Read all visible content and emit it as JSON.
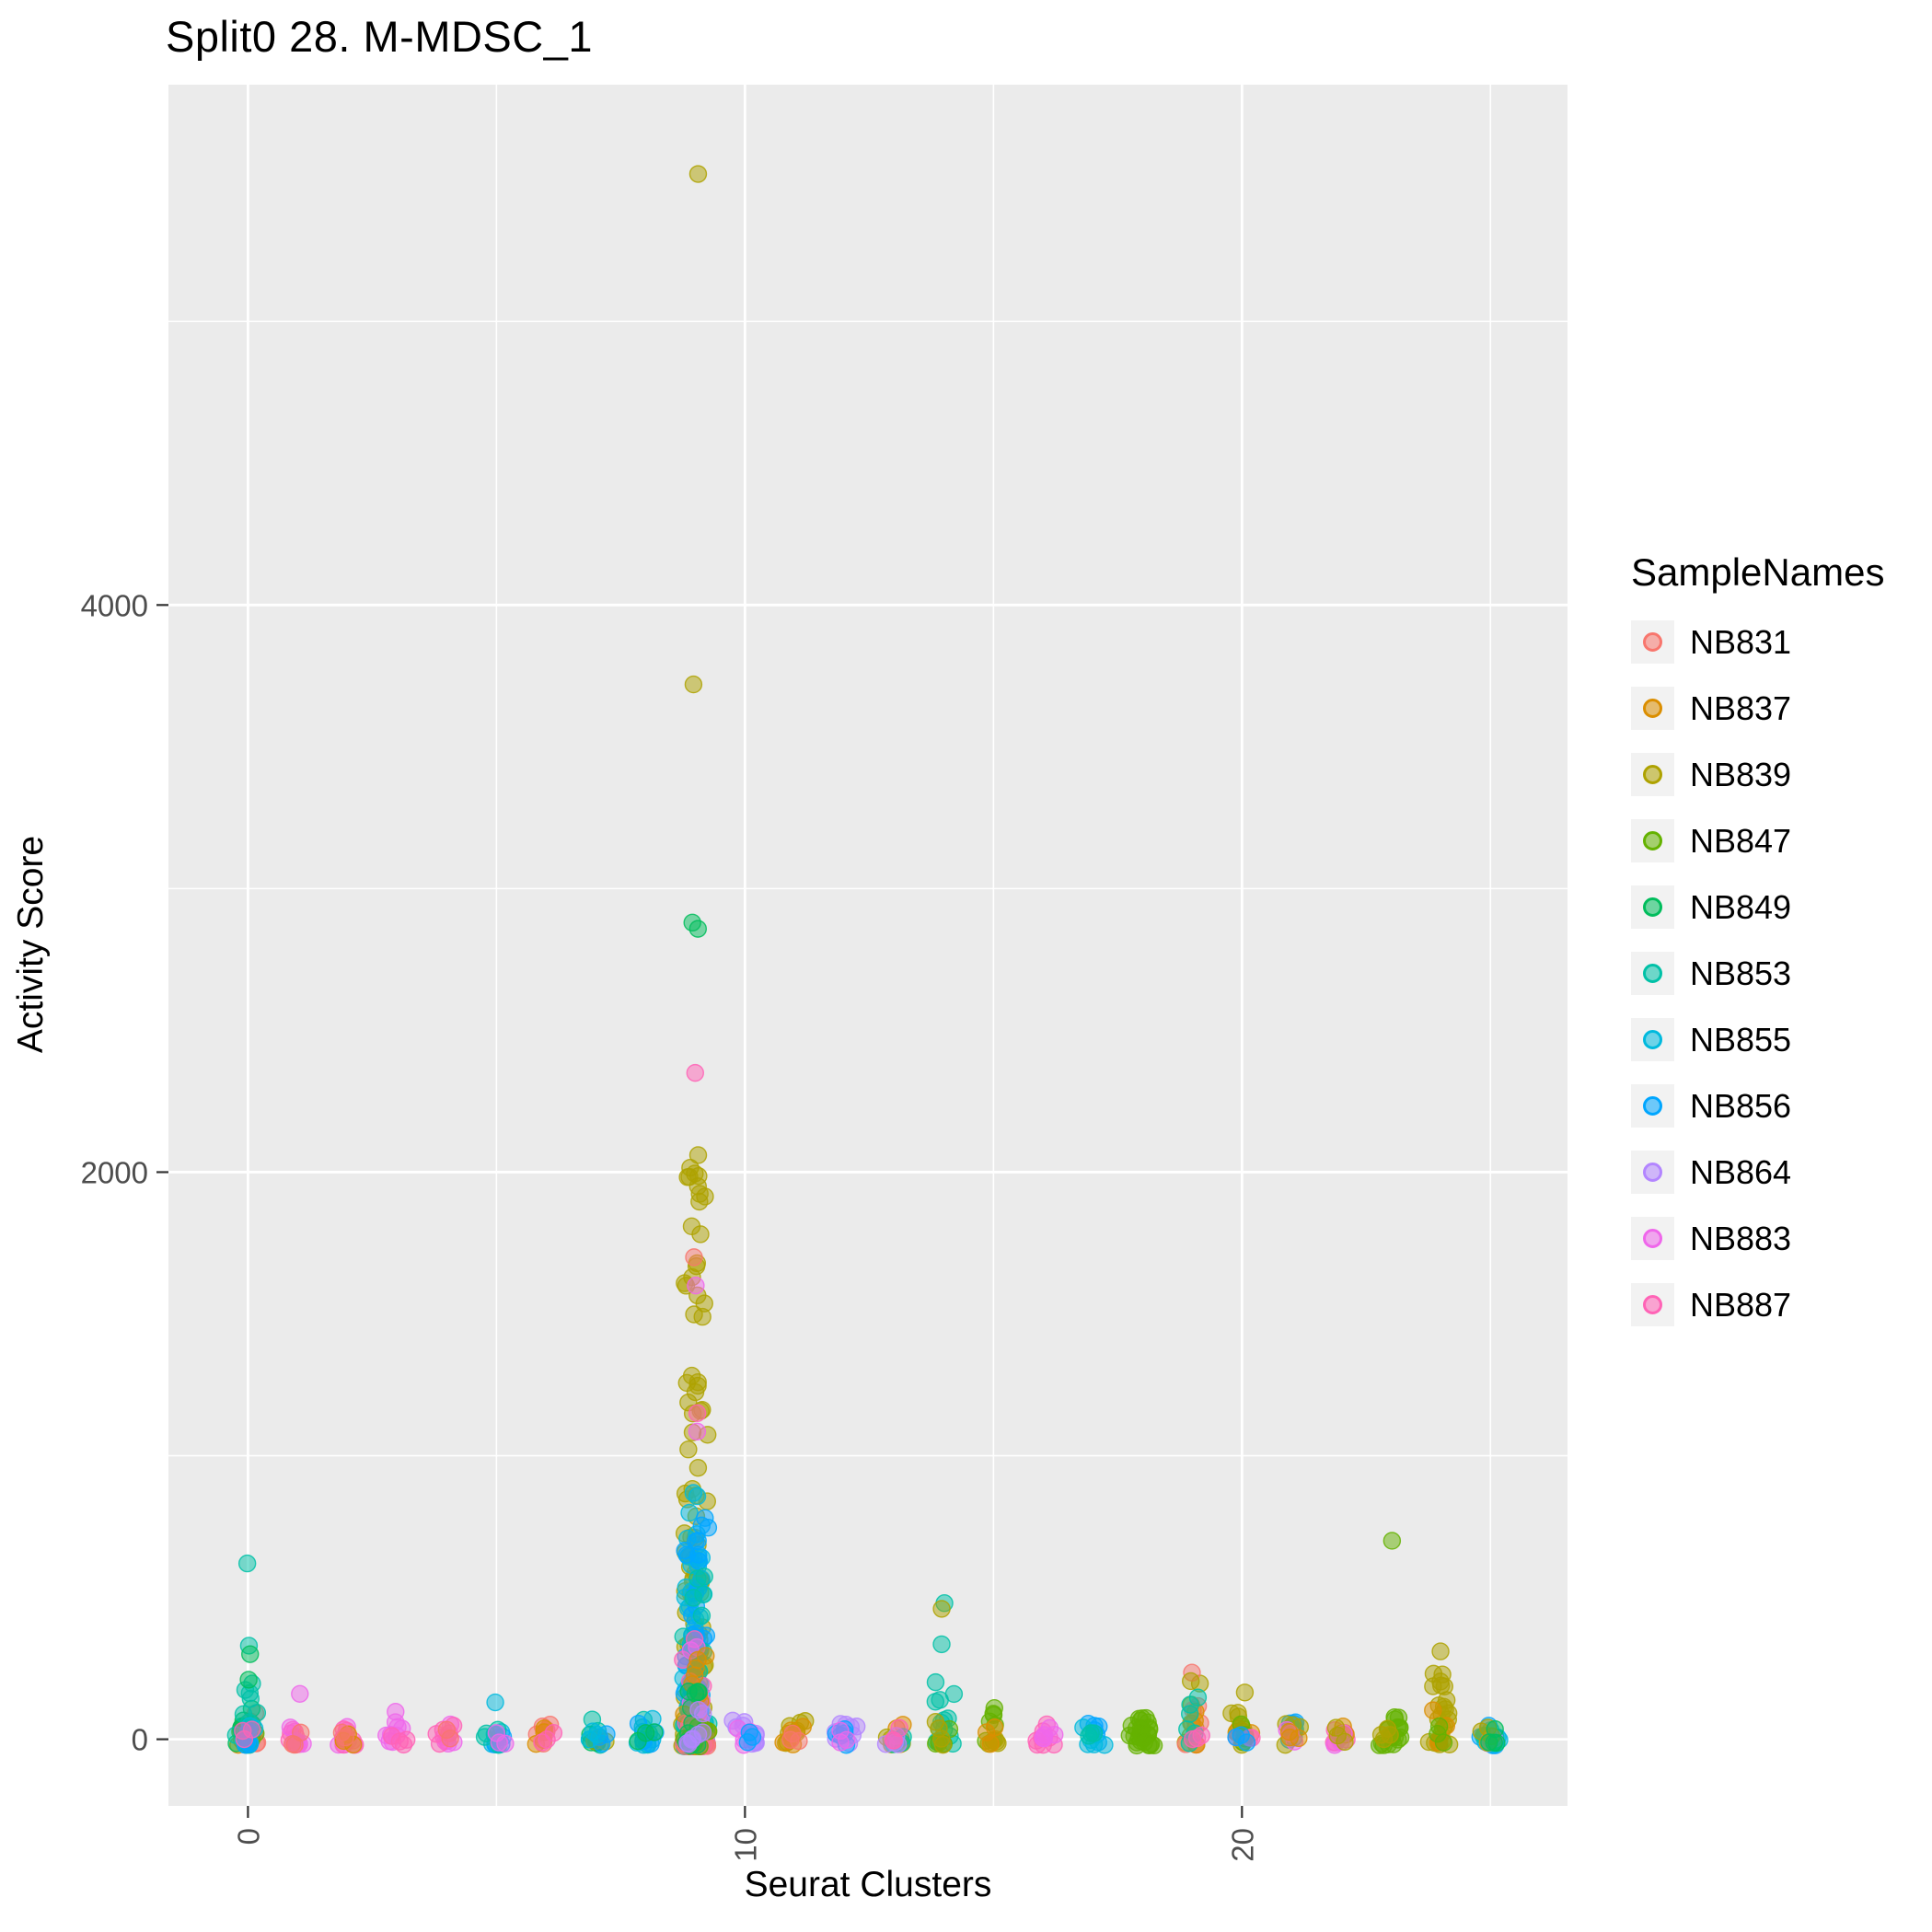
{
  "chart_data": {
    "type": "scatter",
    "title": "Split0 28. M-MDSC_1",
    "xlabel": "Seurat Clusters",
    "ylabel": "Activity Score",
    "x_domain": [
      -1.6,
      26.55
    ],
    "y_domain": [
      -235,
      5835
    ],
    "x_ticks": [
      {
        "v": 0,
        "label": "0"
      },
      {
        "v": 10,
        "label": "10"
      },
      {
        "v": 20,
        "label": "20"
      }
    ],
    "y_ticks": [
      {
        "v": 0,
        "label": "0"
      },
      {
        "v": 2000,
        "label": "2000"
      },
      {
        "v": 4000,
        "label": "4000"
      }
    ],
    "grid": {
      "major_y": [
        0,
        2000,
        4000
      ],
      "minor_y": [
        1000,
        3000,
        5000
      ],
      "major_x": [
        0,
        10,
        20
      ],
      "minor_x": [
        5,
        15,
        25
      ]
    },
    "style": {
      "panel_bg": "#EBEBEB",
      "grid_color": "#FFFFFF",
      "tick_color": "#333333",
      "tick_label_color": "#4D4D4D",
      "point_radius": 9,
      "point_fill_opacity": 0.5,
      "point_stroke_opacity": 0.85
    },
    "legend": {
      "title": "SampleNames",
      "entries": [
        {
          "label": "NB831",
          "color": "#F8766D"
        },
        {
          "label": "NB837",
          "color": "#DB8E00"
        },
        {
          "label": "NB839",
          "color": "#AEA200"
        },
        {
          "label": "NB847",
          "color": "#64B200"
        },
        {
          "label": "NB849",
          "color": "#00BD5C"
        },
        {
          "label": "NB853",
          "color": "#00C1A7"
        },
        {
          "label": "NB855",
          "color": "#00BADE"
        },
        {
          "label": "NB856",
          "color": "#00A6FF"
        },
        {
          "label": "NB864",
          "color": "#B385FF"
        },
        {
          "label": "NB883",
          "color": "#EF67EB"
        },
        {
          "label": "NB887",
          "color": "#FF63B6"
        }
      ]
    },
    "clouds": [
      [
        0,
        0,
        7,
        -20,
        130,
        1.6,
        0.27
      ],
      [
        0,
        1,
        5,
        -20,
        80,
        1.6,
        0.27
      ],
      [
        0,
        3,
        4,
        -20,
        60,
        1.6,
        0.27
      ],
      [
        0,
        4,
        8,
        -20,
        180,
        1.8,
        0.27
      ],
      [
        0,
        5,
        10,
        -20,
        200,
        2.0,
        0.27
      ],
      [
        0,
        6,
        4,
        -20,
        50,
        1.6,
        0.27
      ],
      [
        0,
        7,
        4,
        -20,
        50,
        1.6,
        0.27
      ],
      [
        0,
        10,
        3,
        -20,
        40,
        1.6,
        0.27
      ],
      [
        1,
        10,
        8,
        -20,
        60,
        1.6,
        0.27
      ],
      [
        1,
        9,
        5,
        -20,
        60,
        1.6,
        0.27
      ],
      [
        1,
        0,
        3,
        -20,
        40,
        1.6,
        0.27
      ],
      [
        2,
        9,
        6,
        -20,
        50,
        1.6,
        0.27
      ],
      [
        2,
        10,
        6,
        -20,
        40,
        1.6,
        0.27
      ],
      [
        2,
        1,
        3,
        -20,
        30,
        1.6,
        0.27
      ],
      [
        2,
        0,
        2,
        -20,
        30,
        1.6,
        0.2
      ],
      [
        3,
        9,
        9,
        -20,
        100,
        1.8,
        0.27
      ],
      [
        3,
        10,
        4,
        -20,
        50,
        1.6,
        0.27
      ],
      [
        4,
        9,
        7,
        -20,
        70,
        1.6,
        0.27
      ],
      [
        4,
        10,
        5,
        -20,
        50,
        1.6,
        0.27
      ],
      [
        4,
        0,
        2,
        -20,
        40,
        1.6,
        0.2
      ],
      [
        5,
        6,
        5,
        -20,
        60,
        1.6,
        0.27
      ],
      [
        5,
        7,
        4,
        -20,
        50,
        1.6,
        0.27
      ],
      [
        5,
        5,
        4,
        -20,
        40,
        1.6,
        0.27
      ],
      [
        5,
        9,
        3,
        -20,
        40,
        1.6,
        0.27
      ],
      [
        6,
        0,
        6,
        -20,
        60,
        1.6,
        0.27
      ],
      [
        6,
        1,
        4,
        -20,
        50,
        1.6,
        0.27
      ],
      [
        6,
        10,
        3,
        -20,
        50,
        1.6,
        0.27
      ],
      [
        7,
        5,
        6,
        -20,
        90,
        1.7,
        0.27
      ],
      [
        7,
        4,
        4,
        -20,
        60,
        1.6,
        0.27
      ],
      [
        7,
        2,
        3,
        -20,
        40,
        1.6,
        0.27
      ],
      [
        7,
        7,
        3,
        -20,
        40,
        1.6,
        0.27
      ],
      [
        7,
        6,
        3,
        -20,
        40,
        1.6,
        0.27
      ],
      [
        8,
        5,
        6,
        -20,
        100,
        1.8,
        0.27
      ],
      [
        8,
        6,
        5,
        -20,
        90,
        1.7,
        0.27
      ],
      [
        8,
        7,
        4,
        -20,
        60,
        1.6,
        0.27
      ],
      [
        8,
        4,
        3,
        -20,
        50,
        1.6,
        0.27
      ],
      [
        9,
        2,
        110,
        -25,
        1150,
        2.4,
        0.3
      ],
      [
        9,
        2,
        26,
        1150,
        2060,
        1.2,
        0.24
      ],
      [
        9,
        6,
        55,
        -25,
        950,
        2.4,
        0.3
      ],
      [
        9,
        7,
        45,
        -25,
        820,
        2.3,
        0.3
      ],
      [
        9,
        5,
        30,
        -25,
        620,
        2.2,
        0.3
      ],
      [
        9,
        10,
        26,
        -25,
        380,
        2.0,
        0.3
      ],
      [
        9,
        9,
        20,
        -25,
        330,
        2.0,
        0.3
      ],
      [
        9,
        1,
        15,
        -25,
        300,
        2.0,
        0.3
      ],
      [
        9,
        0,
        10,
        -25,
        220,
        1.8,
        0.3
      ],
      [
        9,
        3,
        10,
        -25,
        160,
        1.8,
        0.3
      ],
      [
        9,
        4,
        10,
        -25,
        260,
        1.8,
        0.3
      ],
      [
        9,
        8,
        8,
        -25,
        120,
        1.8,
        0.3
      ],
      [
        10,
        8,
        10,
        -20,
        70,
        1.6,
        0.3
      ],
      [
        10,
        9,
        4,
        -20,
        40,
        1.6,
        0.27
      ],
      [
        10,
        7,
        3,
        -20,
        40,
        1.6,
        0.2
      ],
      [
        11,
        2,
        8,
        -20,
        70,
        1.6,
        0.27
      ],
      [
        11,
        1,
        5,
        -20,
        60,
        1.6,
        0.27
      ],
      [
        11,
        0,
        3,
        -20,
        40,
        1.6,
        0.2
      ],
      [
        12,
        8,
        8,
        -20,
        55,
        1.6,
        0.27
      ],
      [
        12,
        7,
        5,
        -20,
        45,
        1.6,
        0.27
      ],
      [
        12,
        9,
        3,
        -20,
        40,
        1.6,
        0.2
      ],
      [
        13,
        1,
        4,
        -20,
        55,
        1.6,
        0.27
      ],
      [
        13,
        2,
        4,
        -20,
        50,
        1.6,
        0.27
      ],
      [
        13,
        5,
        4,
        -20,
        50,
        1.6,
        0.27
      ],
      [
        13,
        8,
        4,
        -20,
        45,
        1.6,
        0.27
      ],
      [
        13,
        10,
        3,
        -20,
        40,
        1.6,
        0.27
      ],
      [
        14,
        5,
        14,
        -20,
        310,
        1.9,
        0.27
      ],
      [
        14,
        3,
        4,
        -20,
        70,
        1.6,
        0.27
      ],
      [
        14,
        2,
        4,
        -20,
        90,
        1.6,
        0.27
      ],
      [
        15,
        3,
        6,
        -20,
        100,
        1.7,
        0.27
      ],
      [
        15,
        2,
        5,
        -20,
        90,
        1.7,
        0.27
      ],
      [
        15,
        1,
        3,
        -20,
        50,
        1.6,
        0.2
      ],
      [
        16,
        10,
        8,
        -20,
        55,
        1.6,
        0.27
      ],
      [
        16,
        9,
        5,
        -20,
        45,
        1.6,
        0.27
      ],
      [
        17,
        7,
        6,
        -20,
        55,
        1.6,
        0.27
      ],
      [
        17,
        6,
        5,
        -20,
        45,
        1.6,
        0.27
      ],
      [
        17,
        5,
        3,
        -20,
        40,
        1.6,
        0.2
      ],
      [
        18,
        3,
        26,
        -22,
        75,
        1.5,
        0.38
      ],
      [
        19,
        2,
        7,
        -20,
        210,
        1.8,
        0.27
      ],
      [
        19,
        0,
        5,
        -20,
        160,
        1.7,
        0.27
      ],
      [
        19,
        1,
        4,
        -20,
        120,
        1.7,
        0.27
      ],
      [
        19,
        5,
        6,
        -20,
        150,
        1.8,
        0.27
      ],
      [
        19,
        10,
        3,
        -20,
        50,
        1.6,
        0.27
      ],
      [
        20,
        2,
        8,
        -20,
        160,
        1.8,
        0.27
      ],
      [
        20,
        1,
        4,
        -20,
        90,
        1.7,
        0.27
      ],
      [
        20,
        3,
        4,
        -20,
        60,
        1.6,
        0.27
      ],
      [
        20,
        10,
        3,
        -20,
        50,
        1.6,
        0.27
      ],
      [
        20,
        7,
        3,
        -20,
        40,
        1.6,
        0.27
      ],
      [
        21,
        7,
        5,
        -20,
        60,
        1.6,
        0.27
      ],
      [
        21,
        6,
        4,
        -20,
        55,
        1.6,
        0.27
      ],
      [
        21,
        2,
        4,
        -20,
        65,
        1.6,
        0.27
      ],
      [
        21,
        9,
        3,
        -20,
        45,
        1.6,
        0.27
      ],
      [
        21,
        1,
        3,
        -20,
        45,
        1.6,
        0.27
      ],
      [
        22,
        10,
        6,
        -20,
        60,
        1.6,
        0.27
      ],
      [
        22,
        1,
        4,
        -20,
        55,
        1.6,
        0.27
      ],
      [
        22,
        9,
        3,
        -20,
        45,
        1.6,
        0.27
      ],
      [
        22,
        2,
        3,
        -20,
        45,
        1.6,
        0.27
      ],
      [
        23,
        3,
        18,
        -22,
        90,
        1.6,
        0.3
      ],
      [
        23,
        2,
        4,
        -20,
        60,
        1.6,
        0.27
      ],
      [
        24,
        2,
        22,
        -22,
        290,
        1.7,
        0.27
      ],
      [
        24,
        1,
        5,
        -20,
        120,
        1.7,
        0.27
      ],
      [
        24,
        3,
        3,
        -20,
        50,
        1.6,
        0.2
      ],
      [
        25,
        7,
        9,
        -22,
        55,
        1.5,
        0.27
      ],
      [
        25,
        6,
        6,
        -20,
        45,
        1.5,
        0.27
      ],
      [
        25,
        5,
        6,
        -20,
        45,
        1.5,
        0.27
      ],
      [
        25,
        8,
        4,
        -20,
        40,
        1.5,
        0.27
      ],
      [
        25,
        2,
        4,
        -20,
        45,
        1.5,
        0.27
      ],
      [
        25,
        4,
        4,
        -20,
        40,
        1.5,
        0.27
      ]
    ],
    "outliers": [
      [
        0,
        5,
        620
      ],
      [
        0,
        5,
        330
      ],
      [
        0,
        4,
        300
      ],
      [
        0,
        4,
        210
      ],
      [
        1,
        9,
        160
      ],
      [
        5,
        6,
        130
      ],
      [
        9,
        2,
        5520
      ],
      [
        9,
        2,
        3720
      ],
      [
        9,
        4,
        2880
      ],
      [
        9,
        4,
        2858
      ],
      [
        9,
        10,
        2350
      ],
      [
        9,
        2,
        2060
      ],
      [
        9,
        2,
        1995
      ],
      [
        9,
        2,
        1950
      ],
      [
        9,
        0,
        1700
      ],
      [
        9,
        9,
        1600
      ],
      [
        9,
        10,
        1150
      ],
      [
        9,
        9,
        1085
      ],
      [
        14,
        5,
        480
      ],
      [
        14,
        2,
        460
      ],
      [
        14,
        5,
        335
      ],
      [
        15,
        3,
        110
      ],
      [
        19,
        0,
        235
      ],
      [
        19,
        2,
        205
      ],
      [
        20,
        2,
        165
      ],
      [
        23,
        3,
        700
      ],
      [
        24,
        2,
        310
      ]
    ]
  }
}
